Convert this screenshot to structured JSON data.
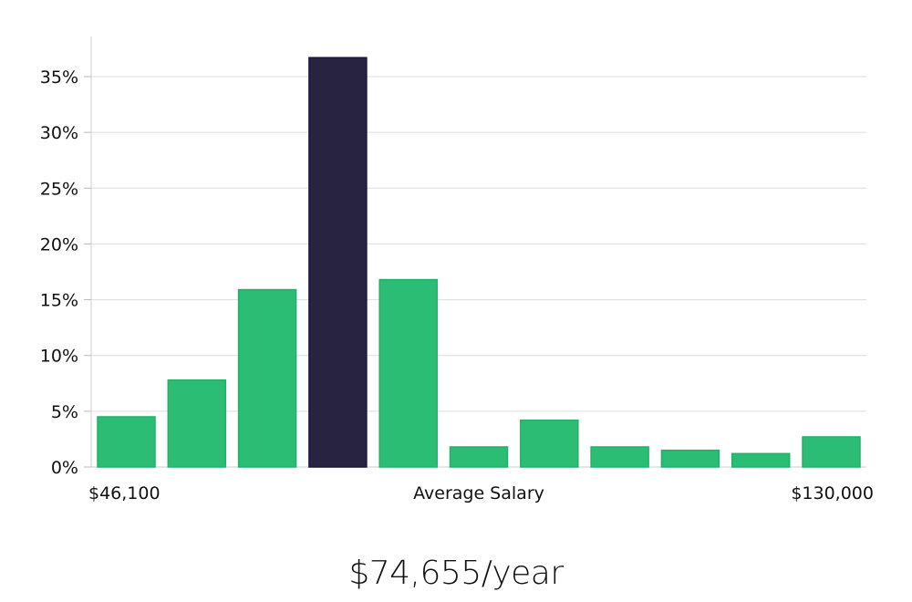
{
  "chart_data": {
    "type": "bar",
    "title": "",
    "xlabel": "Average Salary",
    "ylabel": "",
    "x_min_label": "$46,100",
    "x_max_label": "$130,000",
    "ylim": [
      0,
      38
    ],
    "yticks": [
      0,
      5,
      10,
      15,
      20,
      25,
      30,
      35
    ],
    "ytick_suffix": "%",
    "values": [
      4.5,
      7.8,
      15.9,
      36.7,
      16.8,
      1.8,
      4.2,
      1.8,
      1.5,
      1.2,
      2.7
    ],
    "highlight_index": 3,
    "colors": {
      "bar": "#2bbd74",
      "highlight": "#28243f",
      "grid": "#dddddd",
      "axis": "#cccccc"
    }
  },
  "summary": {
    "salary": "$74,655/year"
  }
}
